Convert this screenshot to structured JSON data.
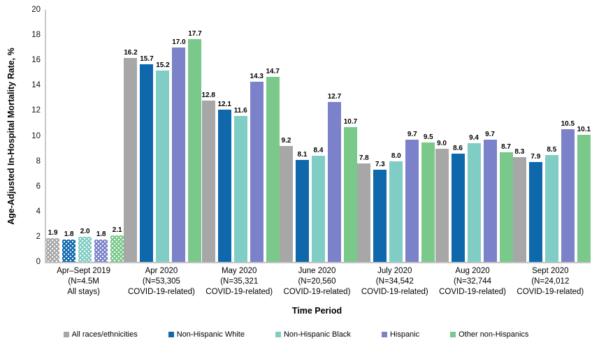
{
  "chart_data": {
    "type": "bar",
    "title": "",
    "ylabel": "Age-Adjusted In-Hospital Mortality Rate, %",
    "xlabel": "Time Period",
    "ylim": [
      0,
      20
    ],
    "ytick_step": 2,
    "grid": false,
    "legend_position": "bottom",
    "value_labels": true,
    "patterned_category_index": 0,
    "categories": [
      "Apr–Sept 2019\n(N=4.5M\nAll stays)",
      "Apr 2020\n(N=53,305\nCOVID-19-related)",
      "May 2020\n(N=35,321\nCOVID-19-related)",
      "June 2020\n(N=20,560\nCOVID-19-related)",
      "July 2020\n(N=34,542\nCOVID-19-related)",
      "Aug 2020\n(N=32,744\nCOVID-19-related)",
      "Sept 2020\n(N=24,012\nCOVID-19-related)"
    ],
    "series": [
      {
        "name": "All races/ethnicities",
        "color": "#a7a7a7",
        "values": [
          1.9,
          16.2,
          12.8,
          9.2,
          7.8,
          9.0,
          8.3
        ]
      },
      {
        "name": "Non-Hispanic White",
        "color": "#0f67ac",
        "values": [
          1.8,
          15.7,
          12.1,
          8.1,
          7.3,
          8.6,
          7.9
        ]
      },
      {
        "name": "Non-Hispanic Black",
        "color": "#7fcdc5",
        "values": [
          2.0,
          15.2,
          11.6,
          8.4,
          8.0,
          9.4,
          8.5
        ]
      },
      {
        "name": "Hispanic",
        "color": "#7b82c9",
        "values": [
          1.8,
          17.0,
          14.3,
          12.7,
          9.7,
          9.7,
          10.5
        ]
      },
      {
        "name": "Other non-Hispanics",
        "color": "#7ac98a",
        "values": [
          2.1,
          17.7,
          14.7,
          10.7,
          9.5,
          8.7,
          10.1
        ]
      }
    ]
  }
}
